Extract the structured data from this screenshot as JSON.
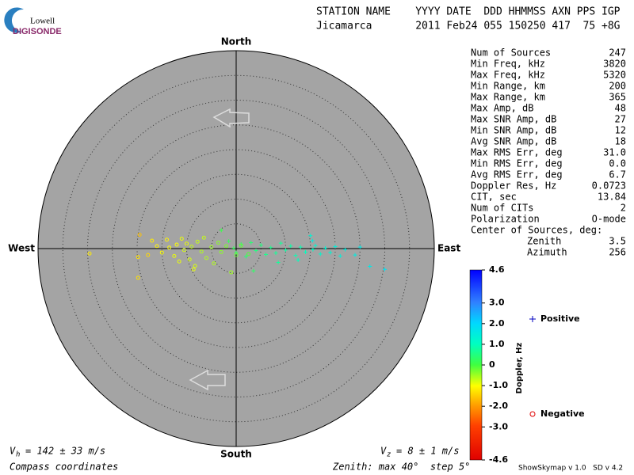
{
  "logo": {
    "top": "Lowell",
    "bottom": "DIGISONDE"
  },
  "header": {
    "line1": "STATION NAME    YYYY DATE  DDD HHMMSS AXN PPS IGP",
    "line2": "Jicamarca       2011 Feb24 055 150250 417  75 +8G"
  },
  "stats": [
    {
      "label": "Num of Sources",
      "value": "247"
    },
    {
      "label": "Min Freq, kHz",
      "value": "3820"
    },
    {
      "label": "Max Freq, kHz",
      "value": "5320"
    },
    {
      "label": "Min Range, km",
      "value": "200"
    },
    {
      "label": "Max Range, km",
      "value": "365"
    },
    {
      "label": "Max Amp, dB",
      "value": "48"
    },
    {
      "label": "Max SNR Amp, dB",
      "value": "27"
    },
    {
      "label": "Min SNR Amp, dB",
      "value": "12"
    },
    {
      "label": "Avg SNR Amp, dB",
      "value": "18"
    },
    {
      "label": "Max RMS Err, deg",
      "value": "31.0"
    },
    {
      "label": "Min RMS Err, deg",
      "value": "0.0"
    },
    {
      "label": "Avg RMS Err, deg",
      "value": "6.7"
    },
    {
      "label": "Doppler Res, Hz",
      "value": "0.0723"
    },
    {
      "label": "CIT, sec",
      "value": "13.84"
    },
    {
      "label": "Num of CITs",
      "value": "2"
    },
    {
      "label": "Polarization",
      "value": "O-mode"
    }
  ],
  "center": {
    "title": "Center of Sources, deg:",
    "rows": [
      {
        "label": "Zenith",
        "value": "3.5"
      },
      {
        "label": "Azimuth",
        "value": "256"
      }
    ]
  },
  "footer": {
    "vh": {
      "symbol": "V",
      "sub": "h",
      "text": "= 142 ± 33 m/s"
    },
    "vz": {
      "symbol": "V",
      "sub": "z",
      "text": "= 8 ± 1 m/s"
    },
    "coords": "Compass coordinates",
    "zenith": "Zenith: max 40°  step 5°",
    "version": "ShowSkymap v 1.0   SD v 4.2"
  },
  "chart_data": {
    "type": "polar-scatter",
    "directions": {
      "north": "North",
      "south": "South",
      "east": "East",
      "west": "West"
    },
    "rlim": [
      0,
      40
    ],
    "rticks": [
      5,
      10,
      15,
      20,
      25,
      30,
      35
    ],
    "colorbar": {
      "label": "Doppler, Hz",
      "clim": [
        -4.6,
        4.6
      ],
      "ticks": [
        4.6,
        {
          "value": 3,
          "label": "3.0"
        },
        {
          "value": 2,
          "label": "2.0"
        },
        {
          "value": 1,
          "label": "1.0"
        },
        0,
        {
          "value": -1,
          "label": "-1.0"
        },
        {
          "value": -2,
          "label": "-2.0"
        },
        {
          "value": -3,
          "label": "-3.0"
        },
        -4.6
      ]
    },
    "series": [
      {
        "name": "Positive",
        "marker": "plus",
        "color": "#0000c0",
        "x": [
          -3,
          -1.5,
          0,
          1,
          2,
          3,
          4,
          5,
          6,
          7,
          8,
          9,
          10,
          11,
          12,
          13,
          14,
          15,
          15.5,
          16,
          17,
          18,
          19,
          20,
          21,
          22,
          24,
          25,
          27,
          30,
          15.4,
          12.5,
          8.5,
          3.5,
          -0.5
        ],
        "y": [
          3.7,
          1.5,
          -0.8,
          0.9,
          -1.6,
          1.2,
          -0.4,
          0.7,
          -1.2,
          0.2,
          -0.9,
          1.1,
          -0.3,
          0.5,
          -1.4,
          0.3,
          -0.7,
          2.6,
          -0.2,
          0.6,
          -1.1,
          0.1,
          -0.8,
          0.4,
          -1.5,
          -0.2,
          -1.3,
          0.3,
          -3.6,
          -4.2,
          1.6,
          -2.3,
          -2.8,
          -4.5,
          0.1
        ],
        "doppler": [
          0.1,
          0.2,
          0.2,
          0.3,
          0.4,
          0.4,
          0.5,
          0.5,
          0.6,
          0.6,
          0.7,
          0.7,
          0.8,
          0.8,
          0.9,
          0.9,
          1.0,
          1.3,
          1.1,
          1.2,
          1.2,
          1.3,
          1.3,
          1.4,
          1.4,
          1.5,
          1.5,
          1.6,
          1.6,
          1.8,
          1.5,
          1.0,
          0.7,
          0.3,
          0.2
        ]
      },
      {
        "name": "Negative",
        "marker": "circle",
        "color": "#e00000",
        "x": [
          -29.6,
          -19.5,
          -19.8,
          -17.8,
          -17,
          -16,
          -15,
          -14,
          -13.5,
          -12.5,
          -12,
          -11,
          -10.5,
          -10,
          -9.4,
          -9,
          -8.6,
          -7.8,
          -7,
          -6.5,
          -6,
          -5,
          -4.5,
          -3.6,
          -3,
          -2,
          -1,
          0,
          1,
          2.5,
          -8.3,
          -11.5,
          -19.8
        ],
        "y": [
          -1,
          2.8,
          -5.9,
          -1.3,
          1.6,
          0.5,
          -0.8,
          1.8,
          0.2,
          -1.5,
          0.8,
          2,
          -0.3,
          1,
          -2.2,
          0.4,
          -4.2,
          1.4,
          -0.6,
          2.2,
          -1.9,
          0.3,
          -3,
          1.2,
          -0.7,
          0.5,
          -4.8,
          -1.3,
          0.6,
          -1.1,
          -3.5,
          -2.6,
          -1.7
        ],
        "doppler": [
          -1.2,
          -1.6,
          -1.3,
          -1.4,
          -1.2,
          -1.1,
          -1.0,
          -1.1,
          -1.0,
          -0.9,
          -1.0,
          -0.9,
          -0.8,
          -0.9,
          -0.8,
          -0.7,
          -0.9,
          -0.7,
          -0.6,
          -0.7,
          -0.6,
          -0.5,
          -0.6,
          -0.4,
          -0.4,
          -0.3,
          -0.5,
          -0.2,
          -0.2,
          -0.1,
          -0.8,
          -0.9,
          -1.3
        ]
      }
    ]
  }
}
